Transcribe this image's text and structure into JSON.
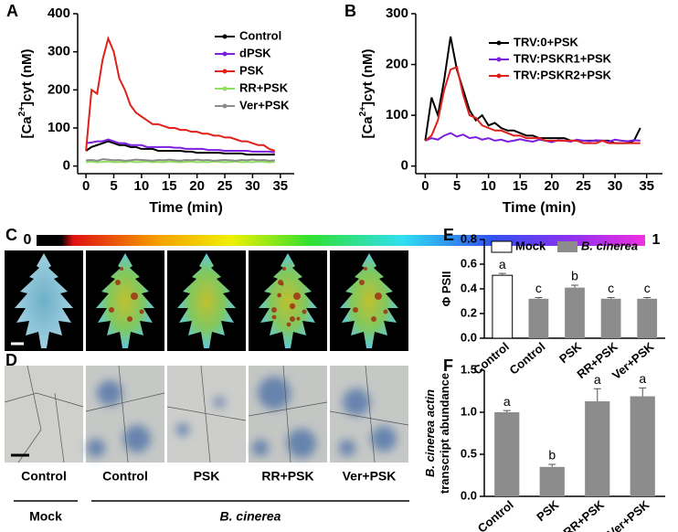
{
  "chart_data": [
    {
      "type": "line",
      "panel": "A",
      "x_label": "Time (min)",
      "y_label": [
        "[Ca",
        "2+",
        "]cyt (nM)"
      ],
      "xlim": [
        -1.5,
        37.5
      ],
      "ylim": [
        -20,
        400
      ],
      "xticks": [
        0,
        5,
        10,
        15,
        20,
        25,
        30,
        35
      ],
      "yticks": [
        0,
        100,
        200,
        300,
        400
      ],
      "x": [
        0,
        1,
        2,
        3,
        4,
        5,
        6,
        7,
        8,
        9,
        10,
        11,
        12,
        13,
        14,
        15,
        16,
        17,
        18,
        19,
        20,
        21,
        22,
        23,
        24,
        25,
        26,
        27,
        28,
        29,
        30,
        31,
        32,
        33,
        34
      ],
      "series": [
        {
          "name": "Control",
          "color": "#000000",
          "values": [
            40,
            50,
            55,
            60,
            65,
            60,
            55,
            55,
            50,
            50,
            45,
            45,
            45,
            40,
            40,
            40,
            40,
            40,
            38,
            38,
            35,
            35,
            35,
            35,
            35,
            33,
            33,
            33,
            33,
            30,
            30,
            30,
            30,
            30,
            30
          ]
        },
        {
          "name": "dPSK",
          "color": "#7b1fe0",
          "values": [
            60,
            62,
            65,
            65,
            70,
            65,
            60,
            60,
            55,
            55,
            55,
            50,
            50,
            50,
            50,
            50,
            48,
            48,
            45,
            45,
            45,
            45,
            42,
            42,
            42,
            40,
            40,
            40,
            40,
            40,
            38,
            38,
            38,
            38,
            36
          ]
        },
        {
          "name": "PSK",
          "color": "#e0201b",
          "values": [
            40,
            200,
            190,
            280,
            335,
            300,
            230,
            200,
            160,
            140,
            130,
            120,
            110,
            110,
            105,
            100,
            100,
            95,
            95,
            90,
            90,
            85,
            85,
            80,
            80,
            75,
            75,
            70,
            65,
            65,
            60,
            55,
            55,
            45,
            40
          ]
        },
        {
          "name": "RR+PSK",
          "color": "#8fe05a",
          "values": [
            10,
            12,
            10,
            11,
            12,
            10,
            11,
            10,
            12,
            10,
            11,
            12,
            10,
            11,
            10,
            12,
            11,
            10,
            11,
            12,
            10,
            11,
            10,
            12,
            11,
            10,
            11,
            12,
            10,
            11,
            10,
            12,
            11,
            10,
            11
          ]
        },
        {
          "name": "Ver+PSK",
          "color": "#8c8c8c",
          "values": [
            15,
            16,
            14,
            18,
            17,
            15,
            16,
            14,
            15,
            17,
            16,
            15,
            14,
            16,
            15,
            17,
            15,
            14,
            16,
            15,
            17,
            15,
            16,
            14,
            15,
            16,
            15,
            14,
            16,
            15,
            17,
            15,
            16,
            14,
            15
          ]
        }
      ]
    },
    {
      "type": "line",
      "panel": "B",
      "x_label": "Time (min)",
      "y_label": [
        "[Ca",
        "2+",
        "]cyt (nM)"
      ],
      "xlim": [
        -1.5,
        37.5
      ],
      "ylim": [
        -15,
        300
      ],
      "xticks": [
        0,
        5,
        10,
        15,
        20,
        25,
        30,
        35
      ],
      "yticks": [
        0,
        100,
        200,
        300
      ],
      "x": [
        0,
        1,
        2,
        3,
        4,
        5,
        6,
        7,
        8,
        9,
        10,
        11,
        12,
        13,
        14,
        15,
        16,
        17,
        18,
        19,
        20,
        21,
        22,
        23,
        24,
        25,
        26,
        27,
        28,
        29,
        30,
        31,
        32,
        33,
        34
      ],
      "series": [
        {
          "name": "TRV:0+PSK",
          "color": "#000000",
          "values": [
            50,
            135,
            100,
            170,
            255,
            190,
            150,
            110,
            90,
            100,
            80,
            85,
            75,
            70,
            70,
            65,
            60,
            60,
            55,
            55,
            55,
            55,
            55,
            50,
            50,
            50,
            50,
            50,
            50,
            50,
            45,
            45,
            45,
            50,
            75
          ]
        },
        {
          "name": "TRV:PSKR1+PSK",
          "color": "#7b1fe0",
          "values": [
            50,
            55,
            52,
            60,
            65,
            58,
            62,
            55,
            57,
            52,
            55,
            50,
            52,
            48,
            50,
            53,
            50,
            48,
            52,
            50,
            47,
            51,
            50,
            48,
            52,
            50,
            49,
            51,
            50,
            48,
            52,
            50,
            49,
            51,
            50
          ]
        },
        {
          "name": "TRV:PSKR2+PSK",
          "color": "#e0201b",
          "values": [
            50,
            60,
            90,
            150,
            190,
            195,
            140,
            100,
            95,
            80,
            75,
            70,
            70,
            65,
            60,
            60,
            55,
            55,
            55,
            50,
            50,
            50,
            50,
            50,
            50,
            45,
            45,
            45,
            50,
            45,
            45,
            45,
            45,
            45,
            45
          ]
        }
      ]
    },
    {
      "type": "bar",
      "panel": "E",
      "y_label": [
        "Φ PSII"
      ],
      "ylim": [
        0,
        0.8
      ],
      "yticks": [
        {
          "value": 0,
          "label": "0.0"
        },
        0.2,
        0.4,
        0.6,
        0.8
      ],
      "categories": [
        "Control",
        "Control",
        "PSK",
        "RR+PSK",
        "Ver+PSK"
      ],
      "letters": [
        "a",
        "c",
        "b",
        "c",
        "c"
      ],
      "series": [
        {
          "name": "Mock",
          "color": "#ffffff",
          "values": [
            0.51,
            null,
            null,
            null,
            null
          ],
          "errors": [
            0.015,
            null,
            null,
            null,
            null
          ]
        },
        {
          "name": "B. cinerea",
          "color": "#8c8c8c",
          "values": [
            null,
            0.32,
            0.41,
            0.32,
            0.32
          ],
          "errors": [
            null,
            0.01,
            0.02,
            0.01,
            0.01
          ]
        }
      ]
    },
    {
      "type": "bar",
      "panel": "F",
      "y_label": [
        "B. cinerea actin",
        "transcript abundance"
      ],
      "ylim": [
        0,
        1.5
      ],
      "yticks": [
        {
          "value": 0,
          "label": "0.0"
        },
        0.5,
        {
          "value": 1,
          "label": "1.0"
        },
        1.5
      ],
      "categories": [
        "Control",
        "PSK",
        "RR+PSK",
        "Ver+PSK"
      ],
      "letters": [
        "a",
        "b",
        "a",
        "a"
      ],
      "series": [
        {
          "color": "#8c8c8c",
          "values": [
            1.0,
            0.35,
            1.13,
            1.19
          ],
          "errors": [
            0.02,
            0.03,
            0.15,
            0.1
          ]
        }
      ]
    }
  ],
  "images": {
    "C": {
      "panel": "C",
      "scale_min": "0",
      "scale_max": "1"
    },
    "D": {
      "panel": "D",
      "labels": [
        "Control",
        "Control",
        "PSK",
        "RR+PSK",
        "Ver+PSK"
      ],
      "groups": [
        "Mock",
        "B. cinerea"
      ]
    }
  }
}
